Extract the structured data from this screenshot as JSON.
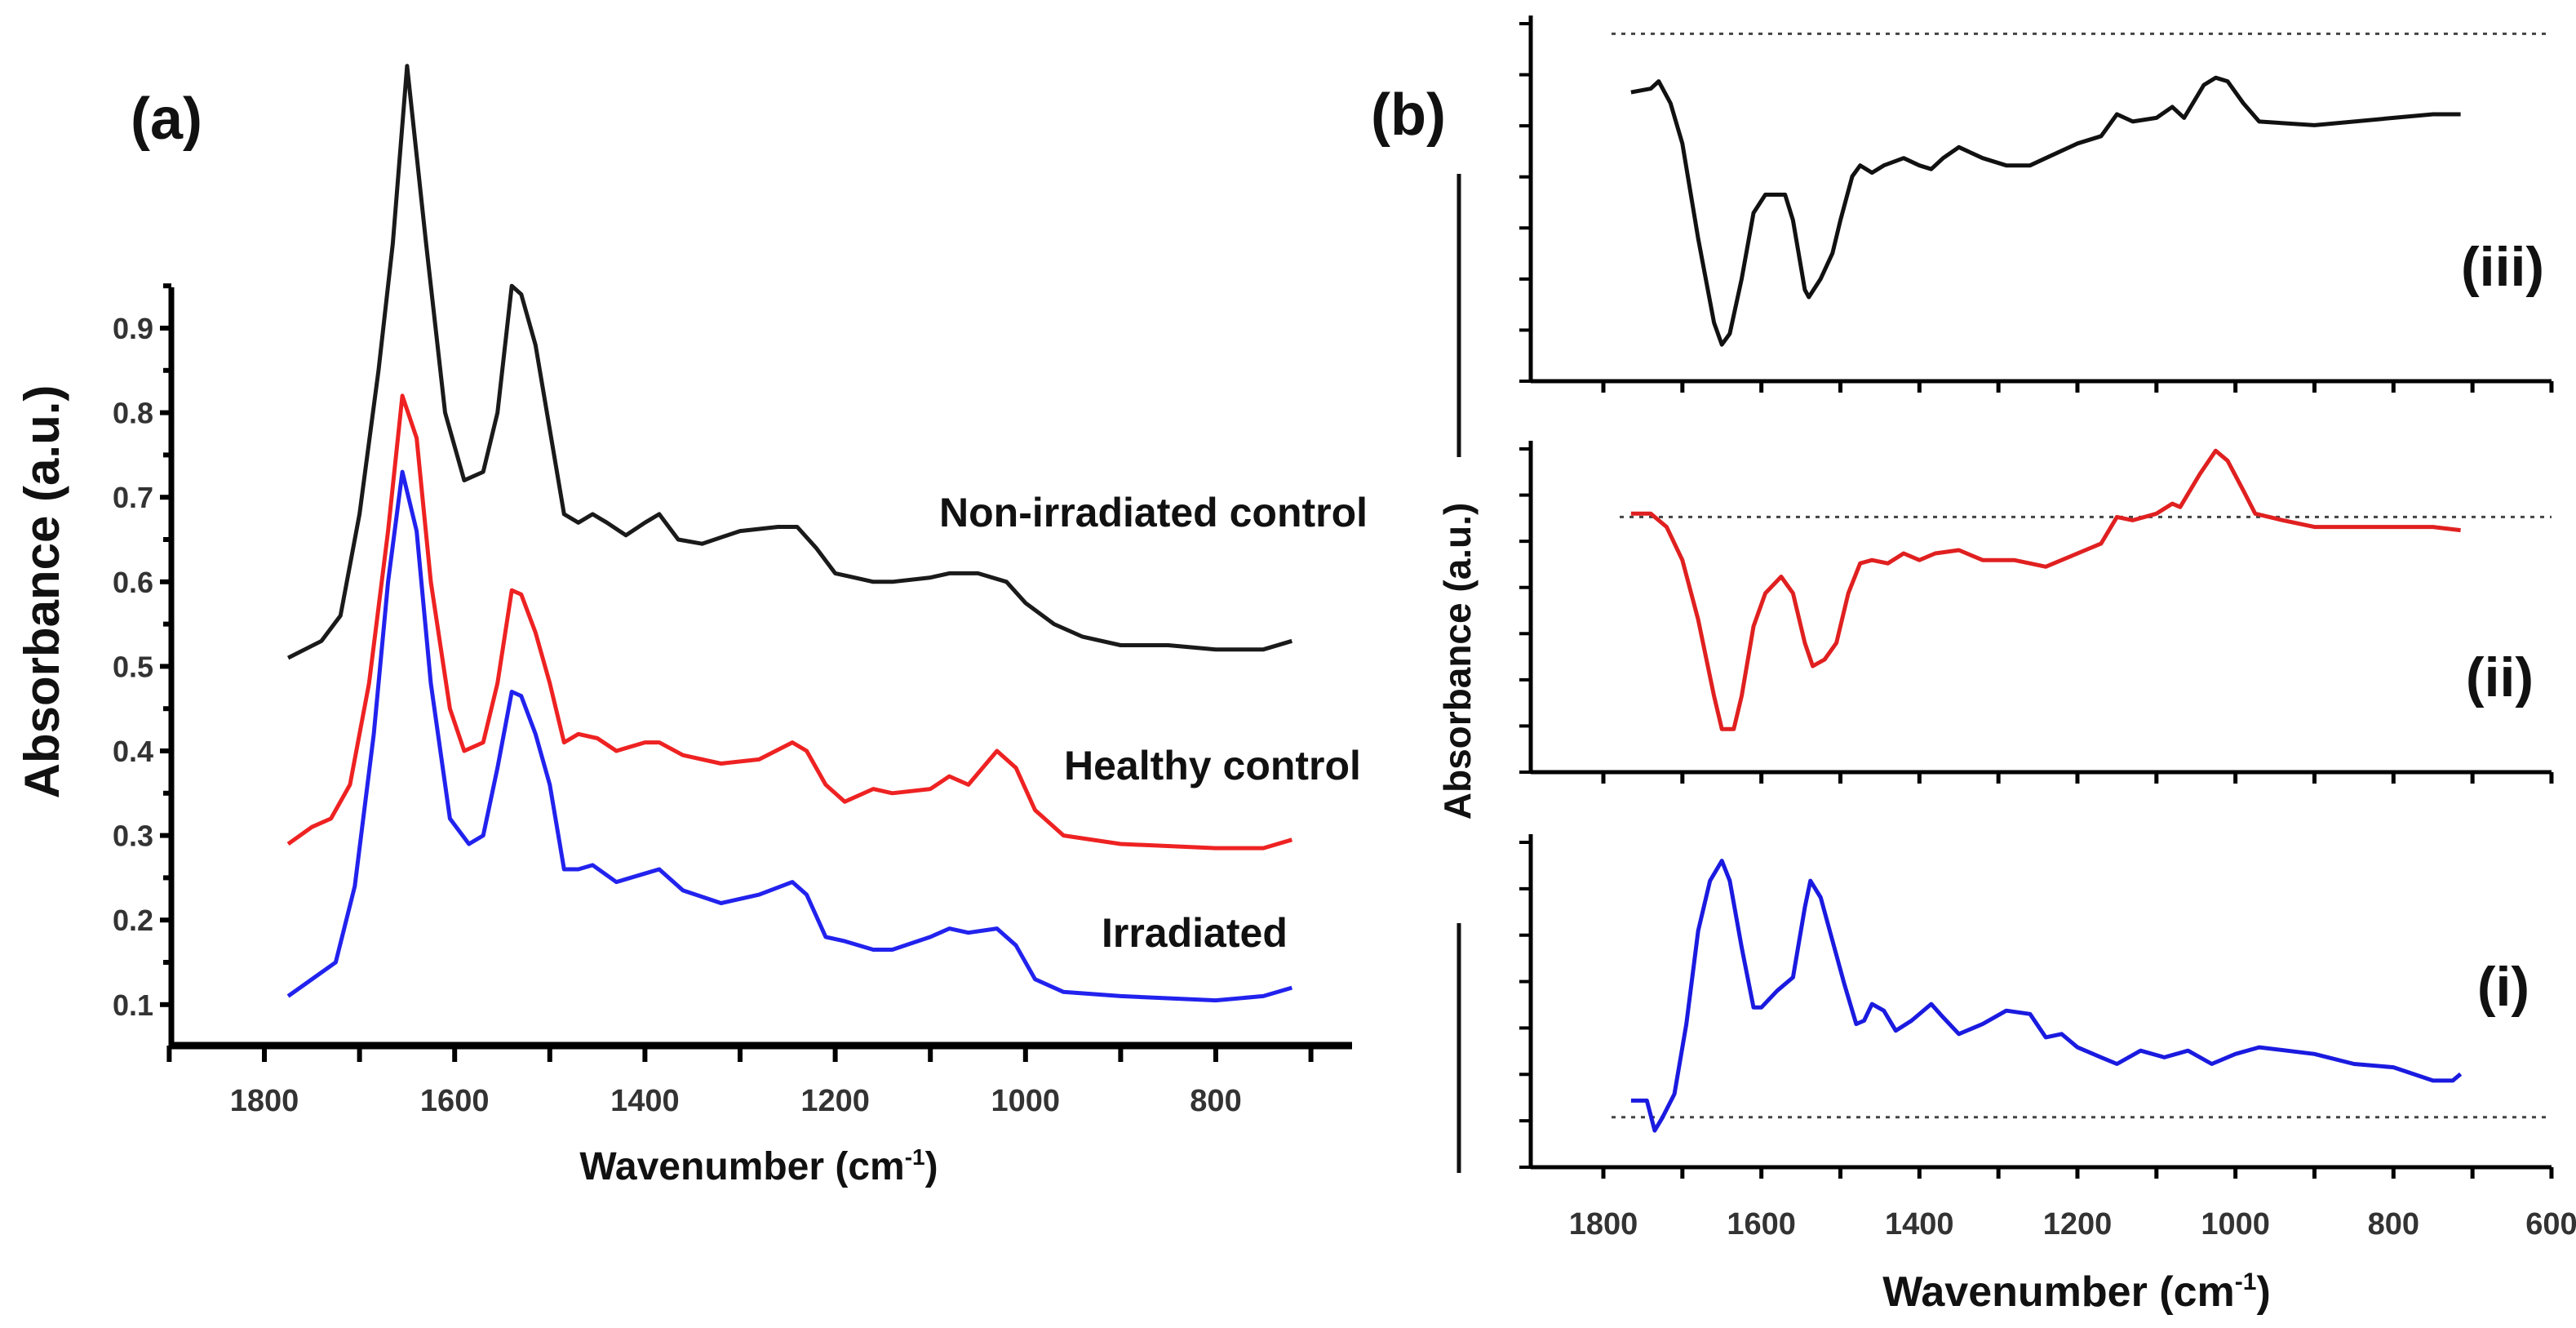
{
  "chart_data": [
    {
      "type": "line",
      "panel_label": "(a)",
      "xlabel": "Wavenumber (cm",
      "xlabel_sup": "-1",
      "xlabel_close": ")",
      "ylabel": "Absorbance (a.u.)",
      "xlim": [
        1900,
        660
      ],
      "ylim": [
        0.05,
        0.95
      ],
      "x_ticks": [
        1800,
        1600,
        1400,
        1200,
        1000,
        800
      ],
      "y_ticks": [
        "0.1",
        "0.2",
        "0.3",
        "0.4",
        "0.5",
        "0.6",
        "0.7",
        "0.8",
        "0.9"
      ],
      "grid": false,
      "series": [
        {
          "name": "Non-irradiated control",
          "color": "#1a1a1a",
          "x": [
            1775,
            1740,
            1720,
            1700,
            1680,
            1665,
            1650,
            1630,
            1610,
            1590,
            1570,
            1555,
            1540,
            1530,
            1515,
            1500,
            1485,
            1470,
            1455,
            1440,
            1420,
            1400,
            1385,
            1365,
            1340,
            1300,
            1260,
            1240,
            1220,
            1200,
            1180,
            1160,
            1140,
            1100,
            1080,
            1050,
            1020,
            1000,
            970,
            940,
            900,
            850,
            800,
            750,
            720
          ],
          "y": [
            0.51,
            0.53,
            0.56,
            0.68,
            0.85,
            1.0,
            1.21,
            1.0,
            0.8,
            0.72,
            0.73,
            0.8,
            0.95,
            0.94,
            0.88,
            0.78,
            0.68,
            0.67,
            0.68,
            0.67,
            0.655,
            0.67,
            0.68,
            0.65,
            0.645,
            0.66,
            0.665,
            0.665,
            0.64,
            0.61,
            0.605,
            0.6,
            0.6,
            0.605,
            0.61,
            0.61,
            0.6,
            0.575,
            0.55,
            0.535,
            0.525,
            0.525,
            0.52,
            0.52,
            0.53
          ]
        },
        {
          "name": "Healthy control",
          "color": "#ee2222",
          "x": [
            1775,
            1750,
            1730,
            1710,
            1690,
            1670,
            1655,
            1640,
            1625,
            1605,
            1590,
            1570,
            1555,
            1540,
            1530,
            1515,
            1500,
            1485,
            1470,
            1450,
            1430,
            1400,
            1385,
            1360,
            1320,
            1280,
            1245,
            1230,
            1210,
            1190,
            1160,
            1140,
            1100,
            1080,
            1060,
            1030,
            1010,
            990,
            960,
            900,
            800,
            750,
            720
          ],
          "y": [
            0.29,
            0.31,
            0.32,
            0.36,
            0.48,
            0.66,
            0.82,
            0.77,
            0.6,
            0.45,
            0.4,
            0.41,
            0.48,
            0.59,
            0.585,
            0.54,
            0.48,
            0.41,
            0.42,
            0.415,
            0.4,
            0.41,
            0.41,
            0.395,
            0.385,
            0.39,
            0.41,
            0.4,
            0.36,
            0.34,
            0.355,
            0.35,
            0.355,
            0.37,
            0.36,
            0.4,
            0.38,
            0.33,
            0.3,
            0.29,
            0.285,
            0.285,
            0.295
          ]
        },
        {
          "name": "Irradiated",
          "color": "#2222ee",
          "x": [
            1775,
            1750,
            1725,
            1705,
            1685,
            1670,
            1655,
            1640,
            1625,
            1605,
            1585,
            1570,
            1555,
            1540,
            1530,
            1515,
            1500,
            1485,
            1470,
            1455,
            1430,
            1400,
            1385,
            1360,
            1320,
            1280,
            1245,
            1230,
            1210,
            1190,
            1160,
            1140,
            1100,
            1080,
            1060,
            1030,
            1010,
            990,
            960,
            900,
            800,
            750,
            720
          ],
          "y": [
            0.11,
            0.13,
            0.15,
            0.24,
            0.42,
            0.6,
            0.73,
            0.66,
            0.48,
            0.32,
            0.29,
            0.3,
            0.38,
            0.47,
            0.465,
            0.42,
            0.36,
            0.26,
            0.26,
            0.265,
            0.245,
            0.255,
            0.26,
            0.235,
            0.22,
            0.23,
            0.245,
            0.23,
            0.18,
            0.175,
            0.165,
            0.165,
            0.18,
            0.19,
            0.185,
            0.19,
            0.17,
            0.13,
            0.115,
            0.11,
            0.105,
            0.11,
            0.12
          ]
        }
      ]
    },
    {
      "type": "line",
      "panel_label": "(b)",
      "xlabel": "Wavenumber (cm",
      "xlabel_sup": "-1",
      "xlabel_close": ")",
      "ylabel": "Absorbance (a.u.)",
      "xlim": [
        1892,
        600
      ],
      "x_ticks": [
        1800,
        1600,
        1400,
        1200,
        1000,
        800,
        600
      ],
      "y_units": "arbitrary (0 = panel bottom, 1 = panel top)",
      "grid": false,
      "panels": [
        {
          "label": "(iii)",
          "color": "#111111",
          "baseline": 0.95,
          "x": [
            1765,
            1740,
            1730,
            1715,
            1700,
            1680,
            1660,
            1650,
            1640,
            1625,
            1610,
            1595,
            1570,
            1560,
            1545,
            1540,
            1525,
            1510,
            1500,
            1485,
            1475,
            1460,
            1445,
            1420,
            1400,
            1385,
            1370,
            1350,
            1320,
            1290,
            1260,
            1240,
            1200,
            1170,
            1150,
            1130,
            1100,
            1080,
            1065,
            1040,
            1025,
            1010,
            990,
            970,
            900,
            800,
            750,
            715
          ],
          "y": [
            0.79,
            0.8,
            0.82,
            0.76,
            0.65,
            0.39,
            0.16,
            0.1,
            0.13,
            0.28,
            0.46,
            0.51,
            0.51,
            0.44,
            0.25,
            0.23,
            0.28,
            0.35,
            0.44,
            0.56,
            0.59,
            0.57,
            0.59,
            0.61,
            0.59,
            0.58,
            0.61,
            0.64,
            0.61,
            0.59,
            0.59,
            0.61,
            0.65,
            0.67,
            0.73,
            0.71,
            0.72,
            0.75,
            0.72,
            0.81,
            0.83,
            0.82,
            0.76,
            0.71,
            0.7,
            0.72,
            0.73,
            0.73
          ]
        },
        {
          "label": "(ii)",
          "color": "#e02020",
          "baseline": 0.77,
          "x": [
            1765,
            1740,
            1720,
            1700,
            1680,
            1660,
            1650,
            1635,
            1625,
            1610,
            1595,
            1575,
            1560,
            1545,
            1535,
            1520,
            1505,
            1490,
            1475,
            1460,
            1440,
            1420,
            1400,
            1380,
            1350,
            1320,
            1280,
            1240,
            1220,
            1190,
            1170,
            1150,
            1130,
            1100,
            1080,
            1070,
            1045,
            1025,
            1010,
            990,
            975,
            940,
            900,
            800,
            750,
            715
          ],
          "y": [
            0.78,
            0.78,
            0.74,
            0.64,
            0.46,
            0.23,
            0.13,
            0.13,
            0.23,
            0.44,
            0.54,
            0.59,
            0.54,
            0.39,
            0.32,
            0.34,
            0.39,
            0.54,
            0.63,
            0.64,
            0.63,
            0.66,
            0.64,
            0.66,
            0.67,
            0.64,
            0.64,
            0.62,
            0.64,
            0.67,
            0.69,
            0.77,
            0.76,
            0.78,
            0.81,
            0.8,
            0.9,
            0.97,
            0.94,
            0.85,
            0.78,
            0.76,
            0.74,
            0.74,
            0.74,
            0.73
          ]
        },
        {
          "label": "(i)",
          "color": "#1a1ae0",
          "baseline": 0.15,
          "x": [
            1765,
            1745,
            1735,
            1725,
            1710,
            1695,
            1680,
            1665,
            1650,
            1640,
            1625,
            1610,
            1600,
            1580,
            1560,
            1545,
            1538,
            1525,
            1510,
            1495,
            1480,
            1470,
            1460,
            1445,
            1430,
            1410,
            1385,
            1370,
            1350,
            1320,
            1290,
            1260,
            1240,
            1220,
            1200,
            1170,
            1150,
            1120,
            1090,
            1060,
            1030,
            1000,
            970,
            900,
            850,
            800,
            750,
            725,
            715
          ],
          "y": [
            0.2,
            0.2,
            0.11,
            0.15,
            0.22,
            0.43,
            0.71,
            0.86,
            0.92,
            0.86,
            0.66,
            0.48,
            0.48,
            0.53,
            0.57,
            0.78,
            0.86,
            0.81,
            0.68,
            0.55,
            0.43,
            0.44,
            0.49,
            0.47,
            0.41,
            0.44,
            0.49,
            0.45,
            0.4,
            0.43,
            0.47,
            0.46,
            0.39,
            0.4,
            0.36,
            0.33,
            0.31,
            0.35,
            0.33,
            0.35,
            0.31,
            0.34,
            0.36,
            0.34,
            0.31,
            0.3,
            0.26,
            0.26,
            0.28
          ]
        }
      ]
    }
  ]
}
